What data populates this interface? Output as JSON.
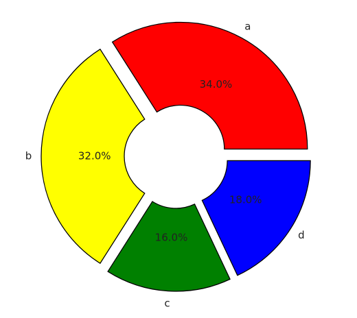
{
  "chart_data": {
    "type": "pie",
    "categories": [
      "a",
      "b",
      "c",
      "d"
    ],
    "values": [
      34,
      32,
      16,
      18
    ],
    "value_labels": [
      "34.0%",
      "32.0%",
      "16.0%",
      "18.0%"
    ],
    "colors": [
      "#ff0000",
      "#ffff00",
      "#008000",
      "#0000ff"
    ]
  }
}
